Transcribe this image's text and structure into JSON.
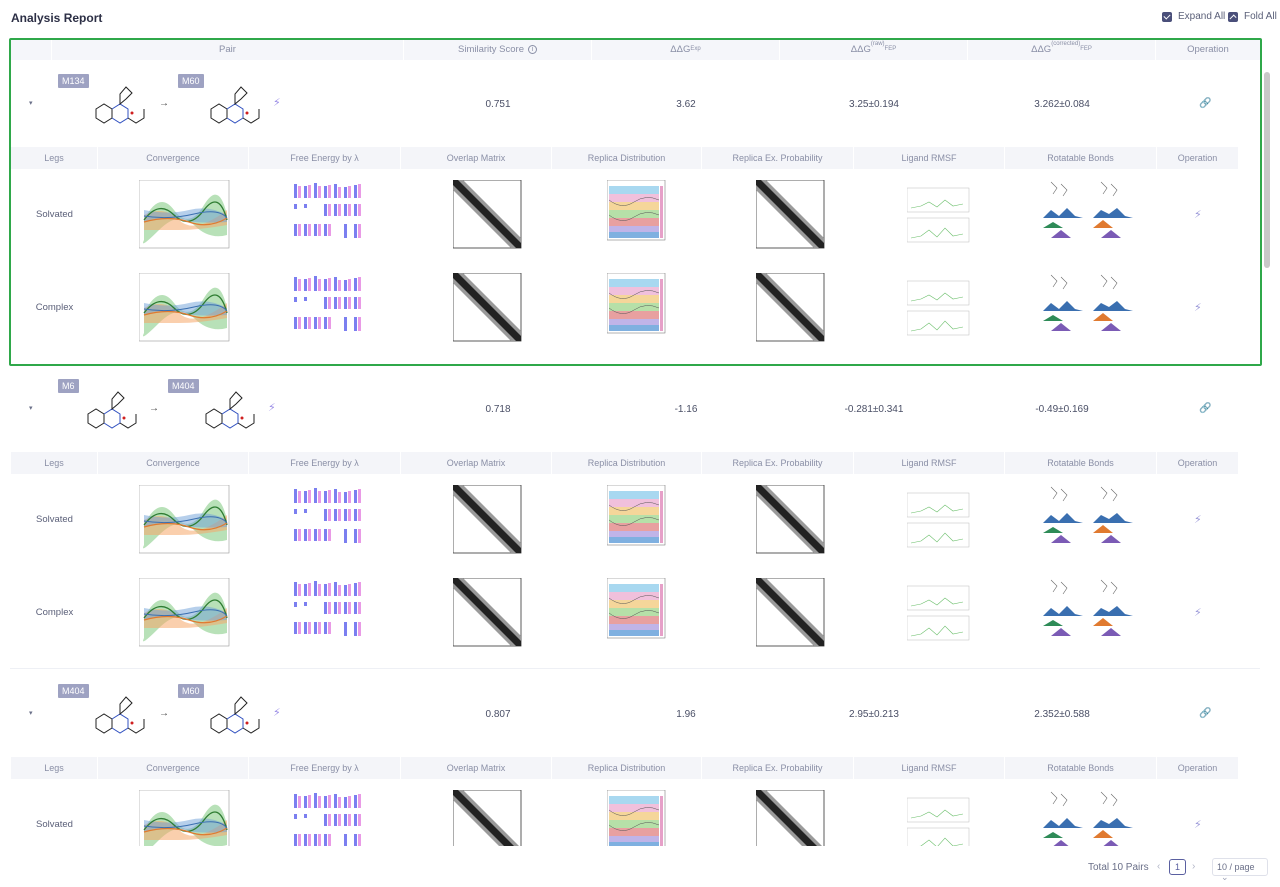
{
  "app": {
    "title": "Analysis Report"
  },
  "top_actions": {
    "expand_all": "Expand All",
    "fold_all": "Fold All"
  },
  "table": {
    "headers": {
      "pair": "Pair",
      "similarity": "Similarity Score",
      "ddg_exp": "ΔΔG",
      "ddg_exp_sub": "Exp",
      "ddg_fep_raw": "ΔΔG",
      "ddg_fep_raw_sup": "(raw)",
      "ddg_fep_raw_sub": "FEP",
      "ddg_fep_corr": "ΔΔG",
      "ddg_fep_corr_sup": "(corrected)",
      "ddg_fep_corr_sub": "FEP",
      "operation": "Operation"
    },
    "sub_headers": {
      "legs": "Legs",
      "convergence": "Convergence",
      "free_energy": "Free Energy by λ",
      "overlap": "Overlap Matrix",
      "replica_dist": "Replica Distribution",
      "replica_prob": "Replica Ex. Probability",
      "ligand_rmsf": "Ligand RMSF",
      "rot_bonds": "Rotatable Bonds",
      "operation": "Operation"
    },
    "pairs": [
      {
        "from": "M134",
        "to": "M60",
        "similarity": "0.751",
        "ddg_exp": "3.62",
        "ddg_raw": "3.25±0.194",
        "ddg_corr": "3.262±0.084",
        "legs": [
          "Solvated",
          "Complex"
        ]
      },
      {
        "from": "M6",
        "to": "M404",
        "similarity": "0.718",
        "ddg_exp": "-1.16",
        "ddg_raw": "-0.281±0.341",
        "ddg_corr": "-0.49±0.169",
        "legs": [
          "Solvated",
          "Complex"
        ]
      },
      {
        "from": "M404",
        "to": "M60",
        "similarity": "0.807",
        "ddg_exp": "1.96",
        "ddg_raw": "2.95±0.213",
        "ddg_corr": "2.352±0.588",
        "legs": [
          "Solvated"
        ]
      }
    ]
  },
  "pagination": {
    "total": "Total 10 Pairs",
    "current": "1",
    "page_size": "10 / page"
  },
  "colors": {
    "accent": "#4a4f7a",
    "selection": "#2fa84a",
    "tag": "#9ea2c2",
    "bolt": "#9a8ce6"
  },
  "icons": {
    "expand": "caret-down-icon",
    "bolt": "lightning-icon",
    "operation": "link-icon"
  }
}
